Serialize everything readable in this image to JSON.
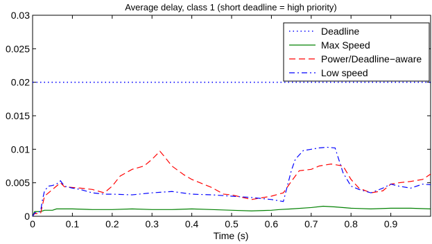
{
  "chart_data": {
    "type": "line",
    "title": "Average delay, class 1 (short deadline = high priority)",
    "xlabel": "Time (s)",
    "ylabel": "",
    "xlim": [
      0,
      1
    ],
    "ylim": [
      0,
      0.03
    ],
    "x_ticks": [
      0,
      0.1,
      0.2,
      0.3,
      0.4,
      0.5,
      0.6,
      0.7,
      0.8,
      0.9
    ],
    "x_tick_labels": [
      "0",
      "0.1",
      "0.2",
      "0.3",
      "0.4",
      "0.5",
      "0.6",
      "0.7",
      "0.8",
      "0.9"
    ],
    "y_ticks": [
      0,
      0.005,
      0.01,
      0.015,
      0.02,
      0.025,
      0.03
    ],
    "y_tick_labels": [
      "0",
      "0.005",
      "0.01",
      "0.015",
      "0.02",
      "0.025",
      "0.03"
    ],
    "grid": false,
    "legend_position": "top-right",
    "series": [
      {
        "name": "Deadline",
        "color": "#0000ff",
        "style": "dotted",
        "x": [
          0,
          1
        ],
        "y": [
          0.02,
          0.02
        ]
      },
      {
        "name": "Max Speed",
        "color": "#008000",
        "style": "solid",
        "x": [
          0,
          0.005,
          0.01,
          0.02,
          0.03,
          0.04,
          0.05,
          0.06,
          0.07,
          0.1,
          0.15,
          0.2,
          0.25,
          0.3,
          0.35,
          0.4,
          0.45,
          0.5,
          0.55,
          0.6,
          0.62,
          0.65,
          0.7,
          0.73,
          0.76,
          0.8,
          0.85,
          0.9,
          0.95,
          1.0
        ],
        "y": [
          0.0,
          0.0007,
          0.0007,
          0.0007,
          0.0009,
          0.0009,
          0.0009,
          0.0011,
          0.0011,
          0.0011,
          0.001,
          0.001,
          0.0011,
          0.001,
          0.001,
          0.0011,
          0.001,
          0.0009,
          0.0008,
          0.0009,
          0.001,
          0.0011,
          0.0013,
          0.0015,
          0.0014,
          0.0012,
          0.0011,
          0.0012,
          0.0012,
          0.0011
        ]
      },
      {
        "name": "Power/Deadline−aware",
        "color": "#ff0000",
        "style": "dashed",
        "x": [
          0,
          0.005,
          0.02,
          0.03,
          0.04,
          0.05,
          0.06,
          0.07,
          0.08,
          0.1,
          0.12,
          0.15,
          0.18,
          0.2,
          0.22,
          0.25,
          0.28,
          0.3,
          0.32,
          0.33,
          0.35,
          0.38,
          0.4,
          0.45,
          0.48,
          0.5,
          0.55,
          0.6,
          0.63,
          0.65,
          0.67,
          0.7,
          0.72,
          0.75,
          0.78,
          0.8,
          0.82,
          0.85,
          0.88,
          0.9,
          0.92,
          0.95,
          0.98,
          1.0
        ],
        "y": [
          0.0,
          0.0004,
          0.0004,
          0.003,
          0.0035,
          0.004,
          0.0045,
          0.005,
          0.0044,
          0.0043,
          0.0042,
          0.004,
          0.0035,
          0.0045,
          0.006,
          0.007,
          0.0075,
          0.0085,
          0.0097,
          0.009,
          0.0075,
          0.0062,
          0.0055,
          0.0043,
          0.0033,
          0.0032,
          0.0025,
          0.003,
          0.0035,
          0.0052,
          0.0068,
          0.007,
          0.0075,
          0.0078,
          0.0075,
          0.0055,
          0.0042,
          0.0035,
          0.0038,
          0.0048,
          0.005,
          0.0052,
          0.0055,
          0.0063
        ]
      },
      {
        "name": "Low speed",
        "color": "#0000ff",
        "style": "dashdot",
        "x": [
          0,
          0.005,
          0.02,
          0.025,
          0.03,
          0.04,
          0.05,
          0.06,
          0.07,
          0.08,
          0.1,
          0.12,
          0.15,
          0.18,
          0.2,
          0.25,
          0.3,
          0.35,
          0.4,
          0.45,
          0.5,
          0.55,
          0.6,
          0.63,
          0.65,
          0.66,
          0.68,
          0.7,
          0.72,
          0.74,
          0.76,
          0.78,
          0.8,
          0.82,
          0.85,
          0.88,
          0.9,
          0.92,
          0.95,
          0.98,
          1.0
        ],
        "y": [
          0.0,
          0.0005,
          0.0007,
          0.0025,
          0.0038,
          0.0045,
          0.0046,
          0.0048,
          0.0053,
          0.0045,
          0.0042,
          0.004,
          0.0035,
          0.0033,
          0.0033,
          0.0032,
          0.0035,
          0.0037,
          0.0033,
          0.0032,
          0.003,
          0.0028,
          0.0025,
          0.0022,
          0.0068,
          0.0085,
          0.0098,
          0.01,
          0.0102,
          0.0103,
          0.0102,
          0.0065,
          0.0045,
          0.004,
          0.0035,
          0.0042,
          0.0048,
          0.0045,
          0.0042,
          0.0048,
          0.0047
        ]
      }
    ]
  }
}
